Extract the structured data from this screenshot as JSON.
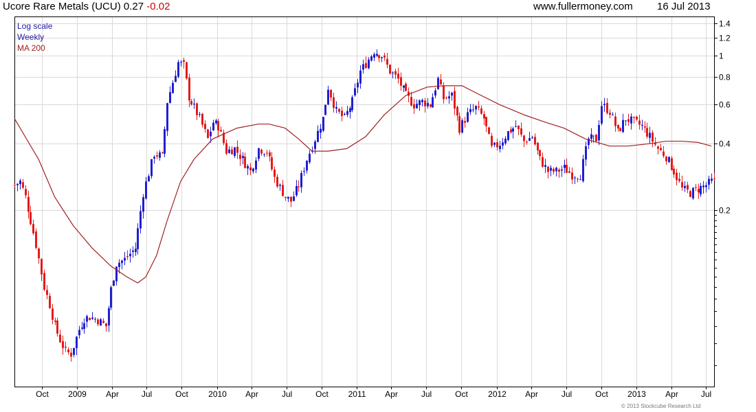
{
  "header": {
    "title": "Ucore Rare Metals (UCU)",
    "price": "0.27",
    "change": "-0.02",
    "site": "www.fullermoney.com",
    "date": "16 Jul 2013"
  },
  "legend": {
    "scale": "Log scale",
    "period": "Weekly",
    "ma": "MA 200"
  },
  "copyright": "© 2013 Stockcube Research Ltd",
  "colors": {
    "up": "#1f1fd1",
    "down": "#e41a1a",
    "ma": "#a02020",
    "grid": "#d9d9d9",
    "legend_blue": "#1a1aa0",
    "legend_red": "#a02020"
  },
  "chart_data": {
    "type": "candlestick",
    "title": "Ucore Rare Metals (UCU)",
    "yscale": "log",
    "ylim": [
      0.032,
      1.5
    ],
    "y_ticks": [
      0.2,
      0.4,
      0.6,
      0.8,
      1,
      1.2,
      1.4
    ],
    "x_tick_labels": [
      "Oct",
      "2009",
      "Apr",
      "Jul",
      "Oct",
      "2010",
      "Apr",
      "Jul",
      "Oct",
      "2011",
      "Apr",
      "Jul",
      "Oct",
      "2012",
      "Apr",
      "Jul",
      "Oct",
      "2013",
      "Apr",
      "Jul"
    ],
    "xlim": [
      "2008-07-21",
      "2013-07-22"
    ],
    "grid": true,
    "series": [
      {
        "name": "Ucore Rare Metals (UCU)",
        "style": "candles",
        "anchors": [
          [
            "2008-07-21",
            0.26
          ],
          [
            "2008-08-04",
            0.27
          ],
          [
            "2008-08-18",
            0.23
          ],
          [
            "2008-09-01",
            0.18
          ],
          [
            "2008-09-15",
            0.14
          ],
          [
            "2008-10-06",
            0.09
          ],
          [
            "2008-10-20",
            0.075
          ],
          [
            "2008-11-03",
            0.06
          ],
          [
            "2008-11-17",
            0.052
          ],
          [
            "2008-12-01",
            0.046
          ],
          [
            "2008-12-15",
            0.045
          ],
          [
            "2009-01-05",
            0.058
          ],
          [
            "2009-01-19",
            0.065
          ],
          [
            "2009-02-02",
            0.066
          ],
          [
            "2009-02-23",
            0.064
          ],
          [
            "2009-03-16",
            0.06
          ],
          [
            "2009-03-30",
            0.088
          ],
          [
            "2009-04-13",
            0.115
          ],
          [
            "2009-05-04",
            0.12
          ],
          [
            "2009-06-01",
            0.135
          ],
          [
            "2009-06-22",
            0.24
          ],
          [
            "2009-07-20",
            0.36
          ],
          [
            "2009-08-10",
            0.35
          ],
          [
            "2009-08-24",
            0.62
          ],
          [
            "2009-09-21",
            0.93
          ],
          [
            "2009-10-05",
            0.9
          ],
          [
            "2009-10-19",
            0.65
          ],
          [
            "2009-11-16",
            0.52
          ],
          [
            "2009-12-07",
            0.42
          ],
          [
            "2009-12-21",
            0.5
          ],
          [
            "2010-01-04",
            0.48
          ],
          [
            "2010-01-25",
            0.37
          ],
          [
            "2010-02-15",
            0.38
          ],
          [
            "2010-03-08",
            0.34
          ],
          [
            "2010-03-29",
            0.3
          ],
          [
            "2010-04-19",
            0.38
          ],
          [
            "2010-05-10",
            0.37
          ],
          [
            "2010-05-31",
            0.28
          ],
          [
            "2010-06-28",
            0.23
          ],
          [
            "2010-07-12",
            0.22
          ],
          [
            "2010-08-02",
            0.26
          ],
          [
            "2010-08-23",
            0.34
          ],
          [
            "2010-09-13",
            0.42
          ],
          [
            "2010-10-04",
            0.52
          ],
          [
            "2010-10-18",
            0.72
          ],
          [
            "2010-11-08",
            0.56
          ],
          [
            "2010-11-29",
            0.52
          ],
          [
            "2010-12-20",
            0.62
          ],
          [
            "2011-01-10",
            0.85
          ],
          [
            "2011-01-24",
            0.92
          ],
          [
            "2011-02-14",
            1.05
          ],
          [
            "2011-03-07",
            1.0
          ],
          [
            "2011-03-28",
            0.85
          ],
          [
            "2011-04-18",
            0.78
          ],
          [
            "2011-05-09",
            0.66
          ],
          [
            "2011-05-30",
            0.6
          ],
          [
            "2011-06-20",
            0.62
          ],
          [
            "2011-07-11",
            0.6
          ],
          [
            "2011-08-01",
            0.78
          ],
          [
            "2011-08-15",
            0.64
          ],
          [
            "2011-09-05",
            0.66
          ],
          [
            "2011-09-26",
            0.47
          ],
          [
            "2011-10-17",
            0.54
          ],
          [
            "2011-11-07",
            0.58
          ],
          [
            "2011-11-28",
            0.52
          ],
          [
            "2011-12-19",
            0.38
          ],
          [
            "2012-01-09",
            0.4
          ],
          [
            "2012-01-30",
            0.45
          ],
          [
            "2012-02-20",
            0.48
          ],
          [
            "2012-03-12",
            0.41
          ],
          [
            "2012-04-02",
            0.43
          ],
          [
            "2012-04-23",
            0.34
          ],
          [
            "2012-05-14",
            0.3
          ],
          [
            "2012-06-04",
            0.3
          ],
          [
            "2012-06-25",
            0.31
          ],
          [
            "2012-07-16",
            0.29
          ],
          [
            "2012-08-06",
            0.29
          ],
          [
            "2012-08-27",
            0.42
          ],
          [
            "2012-09-17",
            0.42
          ],
          [
            "2012-10-01",
            0.6
          ],
          [
            "2012-10-22",
            0.56
          ],
          [
            "2012-11-12",
            0.45
          ],
          [
            "2012-12-03",
            0.52
          ],
          [
            "2012-12-24",
            0.5
          ],
          [
            "2013-01-14",
            0.48
          ],
          [
            "2013-02-04",
            0.43
          ],
          [
            "2013-02-25",
            0.38
          ],
          [
            "2013-03-18",
            0.35
          ],
          [
            "2013-04-08",
            0.3
          ],
          [
            "2013-04-29",
            0.25
          ],
          [
            "2013-05-20",
            0.24
          ],
          [
            "2013-06-10",
            0.25
          ],
          [
            "2013-07-01",
            0.26
          ],
          [
            "2013-07-15",
            0.27
          ]
        ]
      },
      {
        "name": "MA 200",
        "style": "line",
        "points": [
          [
            "2008-07-21",
            0.52
          ],
          [
            "2008-08-18",
            0.43
          ],
          [
            "2008-09-22",
            0.34
          ],
          [
            "2008-11-03",
            0.23
          ],
          [
            "2008-12-22",
            0.17
          ],
          [
            "2009-02-09",
            0.135
          ],
          [
            "2009-03-30",
            0.112
          ],
          [
            "2009-05-11",
            0.1
          ],
          [
            "2009-06-08",
            0.094
          ],
          [
            "2009-06-29",
            0.1
          ],
          [
            "2009-07-27",
            0.125
          ],
          [
            "2009-08-24",
            0.18
          ],
          [
            "2009-09-28",
            0.27
          ],
          [
            "2009-11-02",
            0.34
          ],
          [
            "2009-12-21",
            0.42
          ],
          [
            "2010-02-22",
            0.47
          ],
          [
            "2010-04-19",
            0.49
          ],
          [
            "2010-05-17",
            0.49
          ],
          [
            "2010-06-28",
            0.47
          ],
          [
            "2010-08-02",
            0.42
          ],
          [
            "2010-09-06",
            0.37
          ],
          [
            "2010-10-18",
            0.37
          ],
          [
            "2010-12-06",
            0.38
          ],
          [
            "2011-01-24",
            0.43
          ],
          [
            "2011-03-14",
            0.54
          ],
          [
            "2011-05-09",
            0.66
          ],
          [
            "2011-07-04",
            0.72
          ],
          [
            "2011-08-15",
            0.73
          ],
          [
            "2011-10-03",
            0.73
          ],
          [
            "2011-11-14",
            0.67
          ],
          [
            "2012-01-09",
            0.6
          ],
          [
            "2012-03-12",
            0.54
          ],
          [
            "2012-05-07",
            0.5
          ],
          [
            "2012-06-25",
            0.47
          ],
          [
            "2012-08-20",
            0.42
          ],
          [
            "2012-10-22",
            0.39
          ],
          [
            "2012-12-10",
            0.39
          ],
          [
            "2013-02-04",
            0.4
          ],
          [
            "2013-03-18",
            0.41
          ],
          [
            "2013-04-29",
            0.41
          ],
          [
            "2013-06-10",
            0.405
          ],
          [
            "2013-07-15",
            0.39
          ]
        ]
      }
    ]
  }
}
